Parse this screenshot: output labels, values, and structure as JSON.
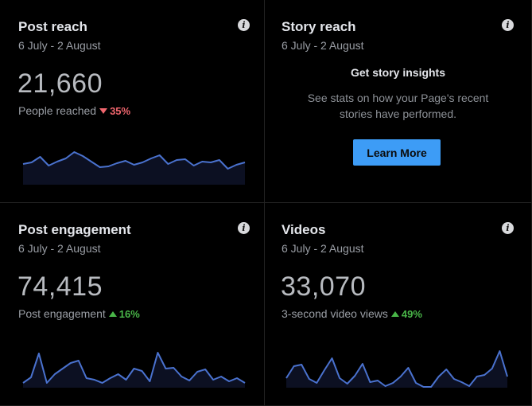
{
  "cards": [
    {
      "title": "Post reach",
      "date_range": "6 July - 2 August",
      "value": "21,660",
      "metric_label": "People reached",
      "change": "35%",
      "direction": "down",
      "trend": [
        206,
        204,
        197,
        208,
        203,
        199,
        191,
        196,
        203,
        210,
        209,
        205,
        202,
        207,
        204,
        199,
        195,
        206,
        201,
        200,
        208,
        203,
        204,
        201,
        212,
        207,
        204
      ]
    },
    {
      "title": "Story reach",
      "date_range": "6 July - 2 August",
      "heading": "Get story insights",
      "description": [
        "See stats on how your Page's recent",
        "stories have performed."
      ],
      "button_label": "Learn More"
    },
    {
      "title": "Post engagement",
      "date_range": "6 July - 2 August",
      "value": "74,415",
      "metric_label": "Post engagement",
      "change": "16%",
      "direction": "up",
      "trend": [
        478,
        471,
        441,
        478,
        467,
        460,
        453,
        450,
        472,
        474,
        478,
        472,
        467,
        474,
        460,
        463,
        476,
        440,
        460,
        459,
        470,
        475,
        464,
        461,
        474,
        470,
        476,
        472,
        478
      ]
    },
    {
      "title": "Videos",
      "date_range": "6 July - 2 August",
      "value": "33,070",
      "metric_label": "3-second video views",
      "change": "49%",
      "direction": "up",
      "trend": [
        472,
        457,
        455,
        473,
        478,
        462,
        447,
        472,
        479,
        469,
        454,
        477,
        475,
        482,
        478,
        470,
        459,
        478,
        483,
        483,
        470,
        461,
        473,
        477,
        482,
        470,
        468,
        460,
        438,
        470
      ]
    }
  ],
  "colors": {
    "line": "#4a72cf",
    "fill": "#0c1022",
    "down": "#f1666e",
    "up": "#49b648",
    "button": "#3d9cf6"
  },
  "icons": {
    "info": "info-icon",
    "down": "triangle-down-icon",
    "up": "triangle-up-icon"
  }
}
